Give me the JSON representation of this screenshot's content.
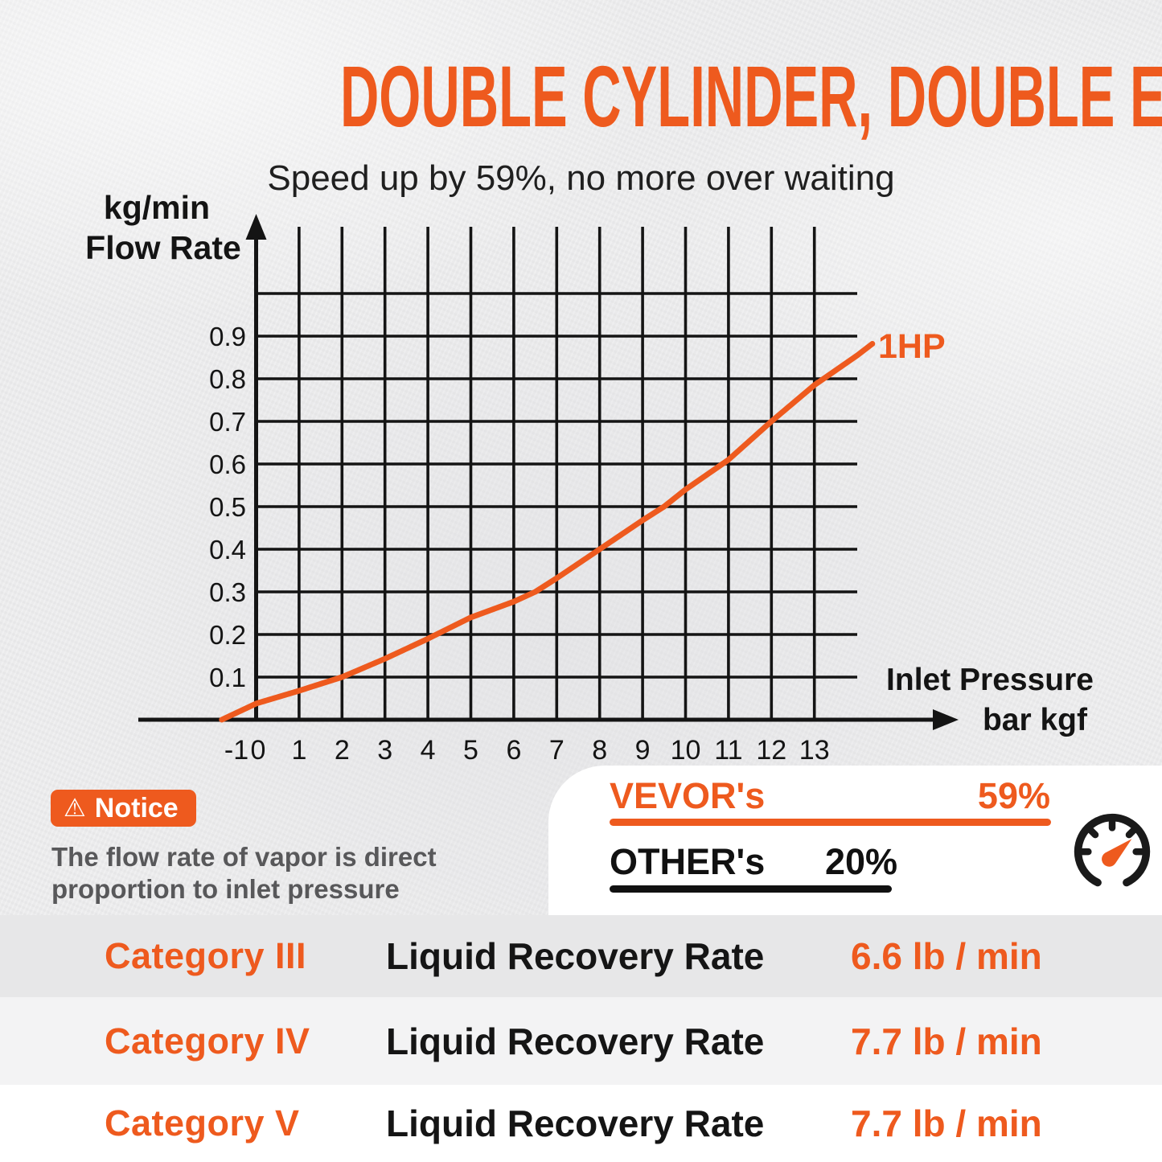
{
  "colors": {
    "accent": "#ee5a1e",
    "ink": "#141414",
    "muted_text": "#58585a",
    "wall_bg": "#ededee",
    "panel_bg": "#ffffff",
    "row_bg_1": "#e7e7e8",
    "row_bg_2": "#f3f3f4",
    "row_bg_3": "#ffffff"
  },
  "header": {
    "title": "DOUBLE CYLINDER, DOUBLE EFFICIENCY",
    "subtitle": "Speed up by 59%, no more over waiting"
  },
  "chart_data": {
    "type": "line",
    "title": "",
    "ylabel_lines": [
      "kg/min",
      "Flow Rate"
    ],
    "xlabel_lines": [
      "Inlet Pressure",
      "bar kgf"
    ],
    "x_ticks": [
      "-1",
      "0",
      "1",
      "2",
      "3",
      "4",
      "5",
      "6",
      "7",
      "8",
      "9",
      "10",
      "11",
      "12",
      "13"
    ],
    "y_ticks": [
      "0.1",
      "0.2",
      "0.3",
      "0.4",
      "0.5",
      "0.6",
      "0.7",
      "0.8",
      "0.9"
    ],
    "x_gridline_values": [
      0,
      1,
      2,
      3,
      4,
      5,
      6,
      7,
      8,
      9,
      10,
      11,
      12,
      13
    ],
    "y_gridline_values": [
      0.1,
      0.2,
      0.3,
      0.4,
      0.5,
      0.6,
      0.7,
      0.8,
      0.9,
      1.0
    ],
    "xlim": [
      -1,
      14
    ],
    "ylim": [
      0,
      1.0
    ],
    "grid": true,
    "legend_position": "end-of-line",
    "series": [
      {
        "name": "1HP",
        "color": "#ee5a1e",
        "points": [
          [
            -0.8,
            0
          ],
          [
            0,
            0.038
          ],
          [
            1,
            0.068
          ],
          [
            2,
            0.1
          ],
          [
            3,
            0.143
          ],
          [
            4,
            0.19
          ],
          [
            5,
            0.24
          ],
          [
            6,
            0.277
          ],
          [
            6.5,
            0.3
          ],
          [
            7,
            0.332
          ],
          [
            8,
            0.4
          ],
          [
            9,
            0.468
          ],
          [
            9.5,
            0.5
          ],
          [
            10,
            0.54
          ],
          [
            11,
            0.61
          ],
          [
            12,
            0.7
          ],
          [
            13,
            0.785
          ],
          [
            14,
            0.855
          ],
          [
            14.35,
            0.882
          ]
        ]
      }
    ]
  },
  "notice": {
    "badge_label": "Notice",
    "icon": "warning-triangle",
    "lines": [
      "The flow rate of vapor is direct",
      "proportion to inlet pressure"
    ]
  },
  "comparison": {
    "icon": "speedometer",
    "rows": [
      {
        "name": "VEVOR's",
        "value": "59%"
      },
      {
        "name": "OTHER's",
        "value": "20%"
      }
    ]
  },
  "categories": [
    {
      "label": "Category III",
      "metric": "Liquid Recovery Rate",
      "value": "6.6 lb / min"
    },
    {
      "label": "Category IV",
      "metric": "Liquid Recovery Rate",
      "value": "7.7 lb / min"
    },
    {
      "label": "Category V",
      "metric": "Liquid Recovery Rate",
      "value": "7.7 lb / min"
    }
  ]
}
